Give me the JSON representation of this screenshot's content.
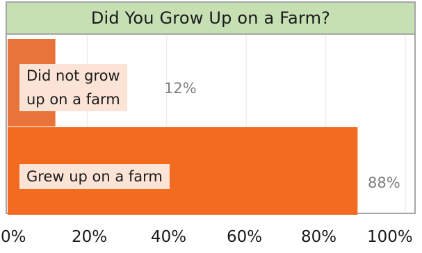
{
  "chart_data": {
    "type": "bar",
    "orientation": "horizontal",
    "title": "Did You Grow Up on a Farm?",
    "categories": [
      "Did not grow up on a farm",
      "Grew up on a farm"
    ],
    "category_lines": [
      [
        "Did not grow",
        "up on a farm"
      ],
      [
        "Grew up on a farm"
      ]
    ],
    "values": [
      12,
      88
    ],
    "value_labels": [
      "12%",
      "88%"
    ],
    "bar_colors": [
      "#e8743b",
      "#f26b21"
    ],
    "xlim": [
      0,
      100
    ],
    "xticks": [
      0,
      20,
      40,
      60,
      80,
      100
    ],
    "xtick_labels": [
      "0%",
      "20%",
      "40%",
      "60%",
      "80%",
      "100%"
    ],
    "grid": true,
    "xlabel": "",
    "ylabel": ""
  }
}
